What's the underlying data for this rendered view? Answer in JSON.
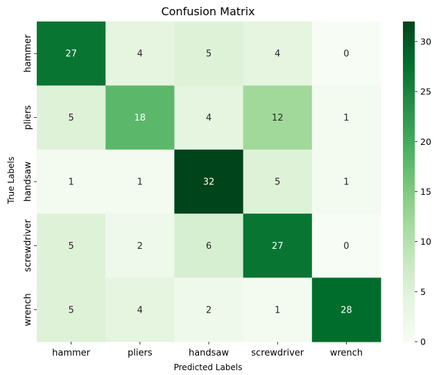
{
  "chart_data": {
    "type": "heatmap",
    "title": "Confusion Matrix",
    "xlabel": "Predicted Labels",
    "ylabel": "True Labels",
    "x_categories": [
      "hammer",
      "pliers",
      "handsaw",
      "screwdriver",
      "wrench"
    ],
    "y_categories": [
      "hammer",
      "pliers",
      "handsaw",
      "screwdriver",
      "wrench"
    ],
    "values": [
      [
        27,
        4,
        5,
        4,
        0
      ],
      [
        5,
        18,
        4,
        12,
        1
      ],
      [
        1,
        1,
        32,
        5,
        1
      ],
      [
        5,
        2,
        6,
        27,
        0
      ],
      [
        5,
        4,
        2,
        1,
        28
      ]
    ],
    "colormap": "Greens",
    "vmin": 0,
    "vmax": 32,
    "colorbar_ticks": [
      0,
      5,
      10,
      15,
      20,
      25,
      30
    ],
    "colors": {
      "low": "#f7fcf5",
      "high": "#00441b",
      "text_dark": "#262626",
      "text_light": "#ffffff"
    }
  }
}
